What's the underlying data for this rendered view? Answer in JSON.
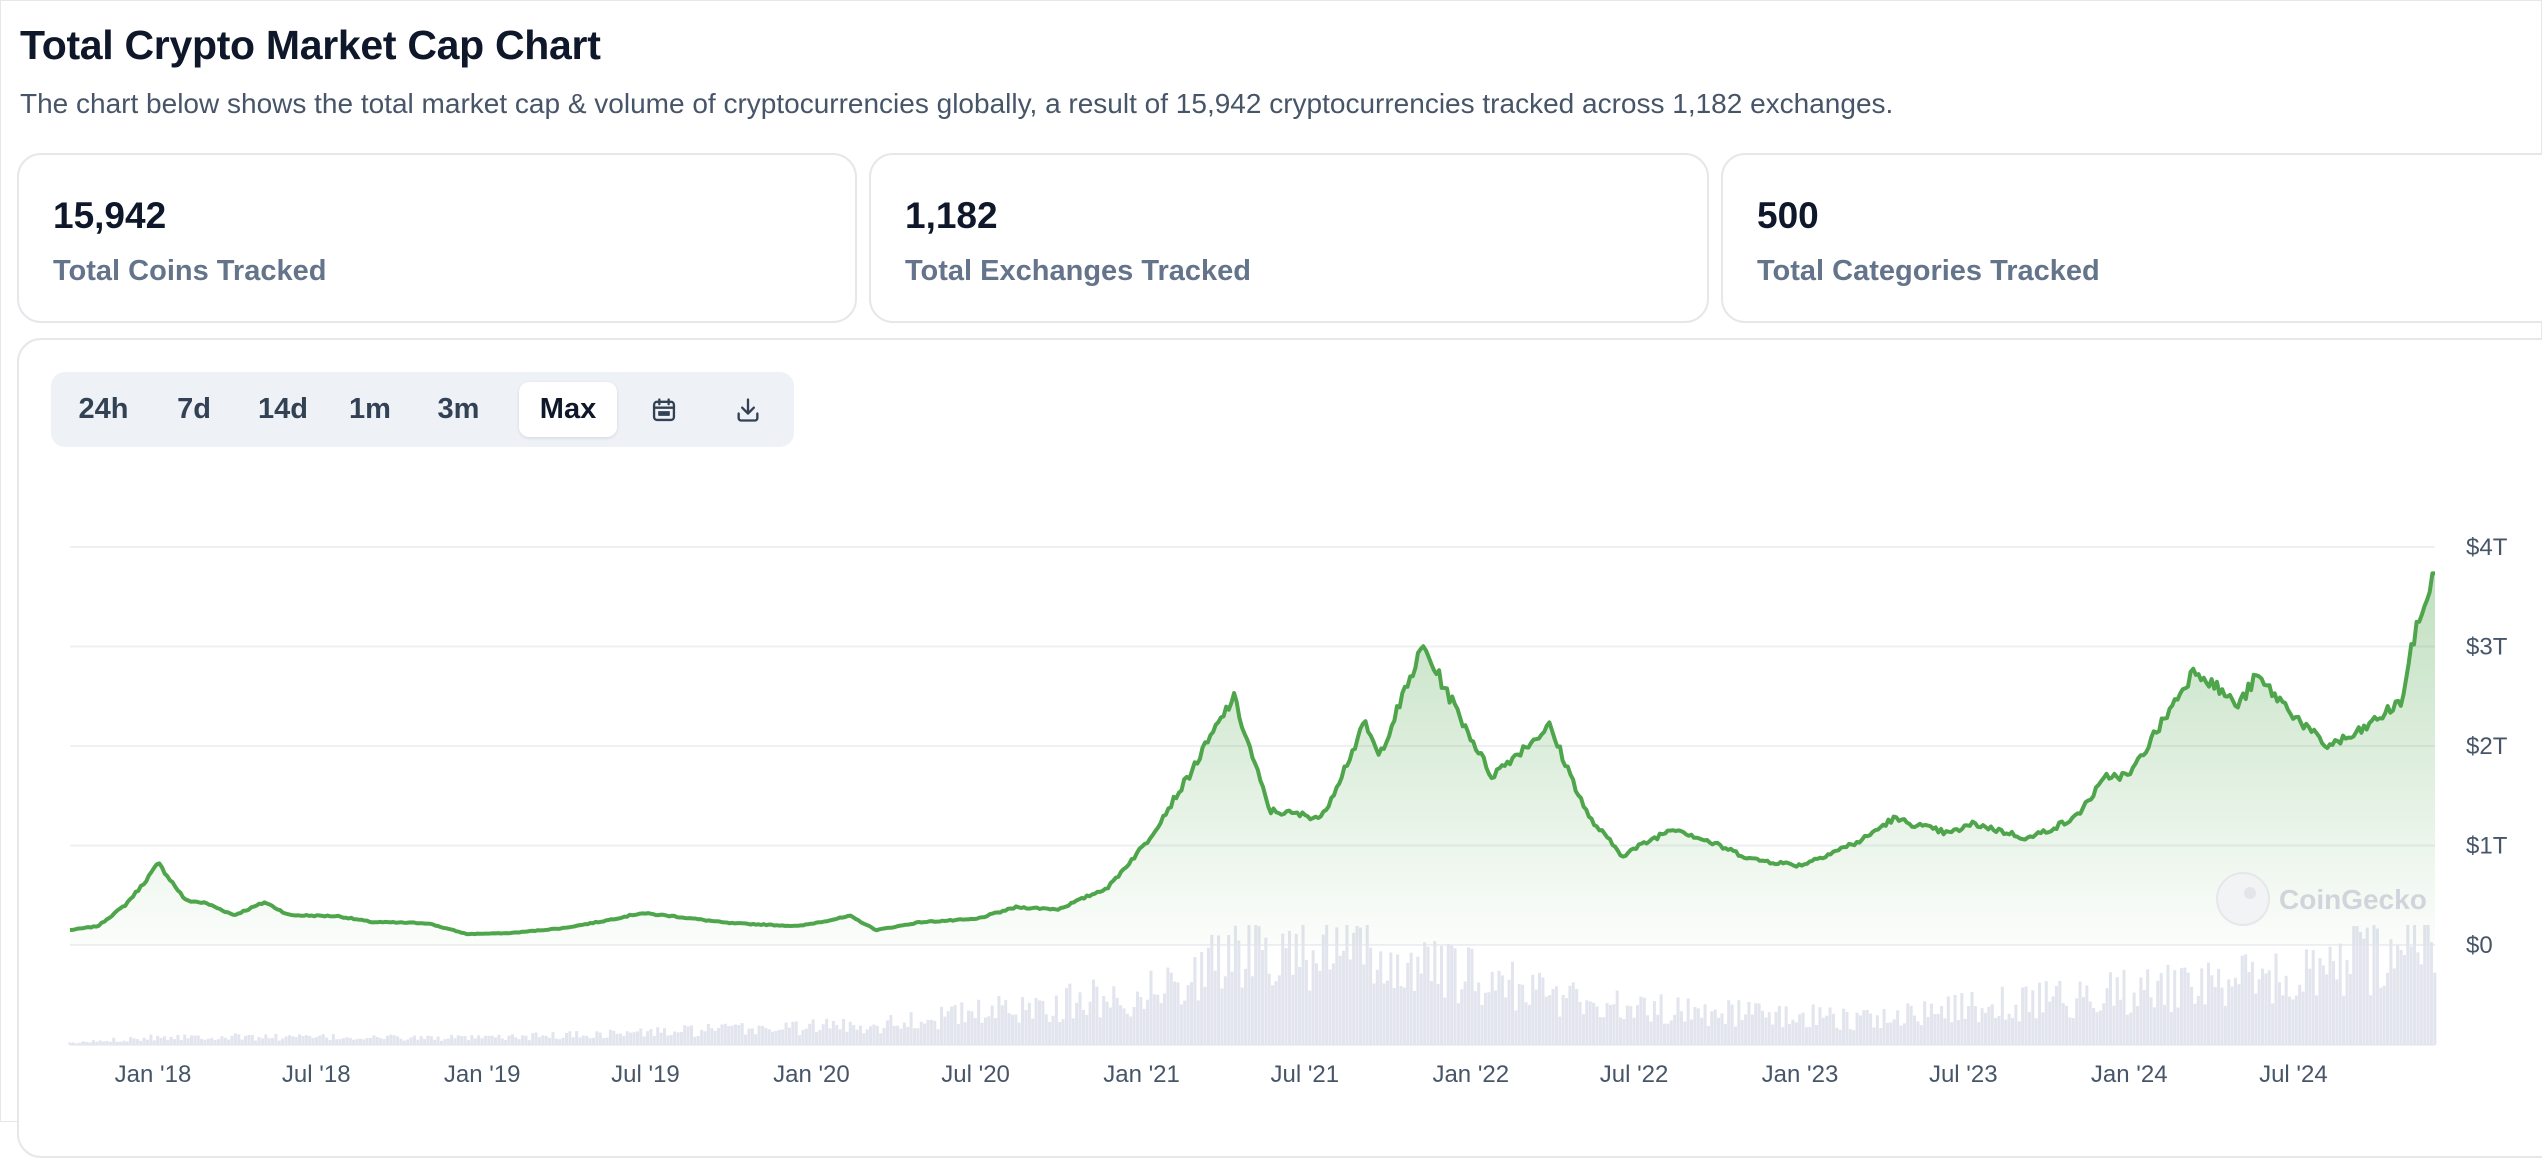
{
  "header": {
    "title": "Total Crypto Market Cap Chart",
    "subtitle": "The chart below shows the total market cap & volume of cryptocurrencies globally, a result of 15,942 cryptocurrencies tracked across 1,182 exchanges."
  },
  "stats": [
    {
      "value": "15,942",
      "label": "Total Coins Tracked"
    },
    {
      "value": "1,182",
      "label": "Total Exchanges Tracked"
    },
    {
      "value": "500",
      "label": "Total Categories Tracked"
    }
  ],
  "range_tabs": [
    "24h",
    "7d",
    "14d",
    "1m",
    "3m",
    "Max"
  ],
  "active_range": "Max",
  "icons": {
    "calendar": "calendar-icon",
    "download": "download-icon",
    "watermark": "coingecko-logo"
  },
  "watermark_text": "CoinGecko",
  "colors": {
    "line": "#4ea54b",
    "fill_top": "#c9e8c6",
    "volume": "#e2e5ee",
    "grid": "#eef0f3"
  },
  "chart_data": {
    "type": "area",
    "title": "Total Crypto Market Cap Chart",
    "xlabel": "",
    "ylabel": "",
    "y_unit": "USD trillions",
    "ylim": [
      0,
      4
    ],
    "y_ticks": [
      0,
      1,
      2,
      3,
      4
    ],
    "y_tick_labels": [
      "$0",
      "$1T",
      "$2T",
      "$3T",
      "$4T"
    ],
    "x_start": "2017-10-01",
    "x_end": "2024-12-05",
    "x_ticks": [
      "2018-01-01",
      "2018-07-01",
      "2019-01-01",
      "2019-07-01",
      "2020-01-01",
      "2020-07-01",
      "2021-01-01",
      "2021-07-01",
      "2022-01-01",
      "2022-07-01",
      "2023-01-01",
      "2023-07-01",
      "2024-01-01",
      "2024-07-01"
    ],
    "x_tick_labels": [
      "Jan '18",
      "Jul '18",
      "Jan '19",
      "Jul '19",
      "Jan '20",
      "Jul '20",
      "Jan '21",
      "Jul '21",
      "Jan '22",
      "Jul '22",
      "Jan '23",
      "Jul '23",
      "Jan '24",
      "Jul '24"
    ],
    "grid": true,
    "series": [
      {
        "name": "Market Cap",
        "x": [
          "2017-10-01",
          "2017-11-01",
          "2017-12-01",
          "2017-12-20",
          "2018-01-07",
          "2018-02-06",
          "2018-03-01",
          "2018-04-01",
          "2018-05-05",
          "2018-06-01",
          "2018-07-25",
          "2018-09-01",
          "2018-11-01",
          "2018-12-15",
          "2019-02-01",
          "2019-04-01",
          "2019-05-15",
          "2019-06-26",
          "2019-08-01",
          "2019-10-01",
          "2019-12-18",
          "2020-02-13",
          "2020-03-13",
          "2020-05-01",
          "2020-07-01",
          "2020-08-15",
          "2020-10-01",
          "2020-11-25",
          "2021-01-08",
          "2021-02-21",
          "2021-04-13",
          "2021-05-23",
          "2021-07-20",
          "2021-09-06",
          "2021-09-21",
          "2021-11-09",
          "2022-01-24",
          "2022-03-29",
          "2022-05-12",
          "2022-06-18",
          "2022-08-14",
          "2022-11-10",
          "2023-01-01",
          "2023-03-10",
          "2023-04-14",
          "2023-06-15",
          "2023-07-13",
          "2023-09-11",
          "2023-11-01",
          "2023-12-08",
          "2024-01-01",
          "2024-03-14",
          "2024-05-01",
          "2024-05-21",
          "2024-08-05",
          "2024-09-06",
          "2024-10-29",
          "2024-11-12",
          "2024-12-05"
        ],
        "values": [
          0.15,
          0.19,
          0.4,
          0.6,
          0.82,
          0.45,
          0.42,
          0.3,
          0.43,
          0.3,
          0.29,
          0.23,
          0.22,
          0.11,
          0.12,
          0.17,
          0.24,
          0.32,
          0.29,
          0.22,
          0.19,
          0.29,
          0.15,
          0.23,
          0.26,
          0.38,
          0.36,
          0.58,
          1.05,
          1.68,
          2.49,
          1.35,
          1.28,
          2.23,
          1.89,
          3.0,
          1.7,
          2.2,
          1.28,
          0.9,
          1.18,
          0.86,
          0.8,
          1.05,
          1.27,
          1.12,
          1.22,
          1.07,
          1.27,
          1.7,
          1.7,
          2.78,
          2.4,
          2.7,
          2.0,
          2.1,
          2.45,
          3.1,
          3.75
        ]
      },
      {
        "name": "Volume",
        "x": [
          "2017-10-01",
          "2018-01-07",
          "2019-01-01",
          "2020-03-13",
          "2021-01-08",
          "2021-05-23",
          "2022-06-18",
          "2023-03-10",
          "2024-03-14",
          "2024-08-05",
          "2024-12-05"
        ],
        "values": [
          0.01,
          0.05,
          0.04,
          0.12,
          0.3,
          0.62,
          0.22,
          0.15,
          0.35,
          0.4,
          0.7
        ]
      }
    ]
  }
}
